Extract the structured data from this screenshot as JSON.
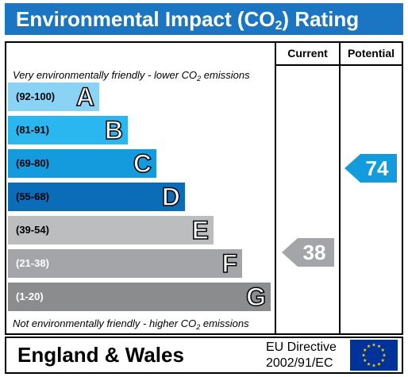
{
  "title": {
    "text_before": "Environmental Impact (CO",
    "subscript": "2",
    "text_after": ") Rating"
  },
  "columns": {
    "current": "Current",
    "potential": "Potential"
  },
  "top_note": {
    "text_before": "Very environmentally friendly - lower CO",
    "subscript": "2",
    "text_after": " emissions"
  },
  "bottom_note": {
    "text_before": "Not environmentally friendly - higher CO",
    "subscript": "2",
    "text_after": " emissions"
  },
  "bands": [
    {
      "range": "(92-100)",
      "letter": "A",
      "color": "#8ad3f5",
      "range_color": "#000000"
    },
    {
      "range": "(81-91)",
      "letter": "B",
      "color": "#2ab7ef",
      "range_color": "#000000"
    },
    {
      "range": "(69-80)",
      "letter": "C",
      "color": "#149bdd",
      "range_color": "#000000"
    },
    {
      "range": "(55-68)",
      "letter": "D",
      "color": "#0b6db7",
      "range_color": "#000000"
    },
    {
      "range": "(39-54)",
      "letter": "E",
      "color": "#bcbdbf",
      "range_color": "#000000"
    },
    {
      "range": "(21-38)",
      "letter": "F",
      "color": "#a3a5a8",
      "range_color": "#ffffff"
    },
    {
      "range": "(1-20)",
      "letter": "G",
      "color": "#8a8c8e",
      "range_color": "#ffffff"
    }
  ],
  "current_rating": {
    "value": "38",
    "band": "F",
    "color": "#a3a5a8"
  },
  "potential_rating": {
    "value": "74",
    "band": "C",
    "color": "#149bdd"
  },
  "footer": {
    "region": "England & Wales",
    "directive_line1": "EU Directive",
    "directive_line2": "2002/91/EC",
    "flag_icon": "eu-flag-icon"
  }
}
